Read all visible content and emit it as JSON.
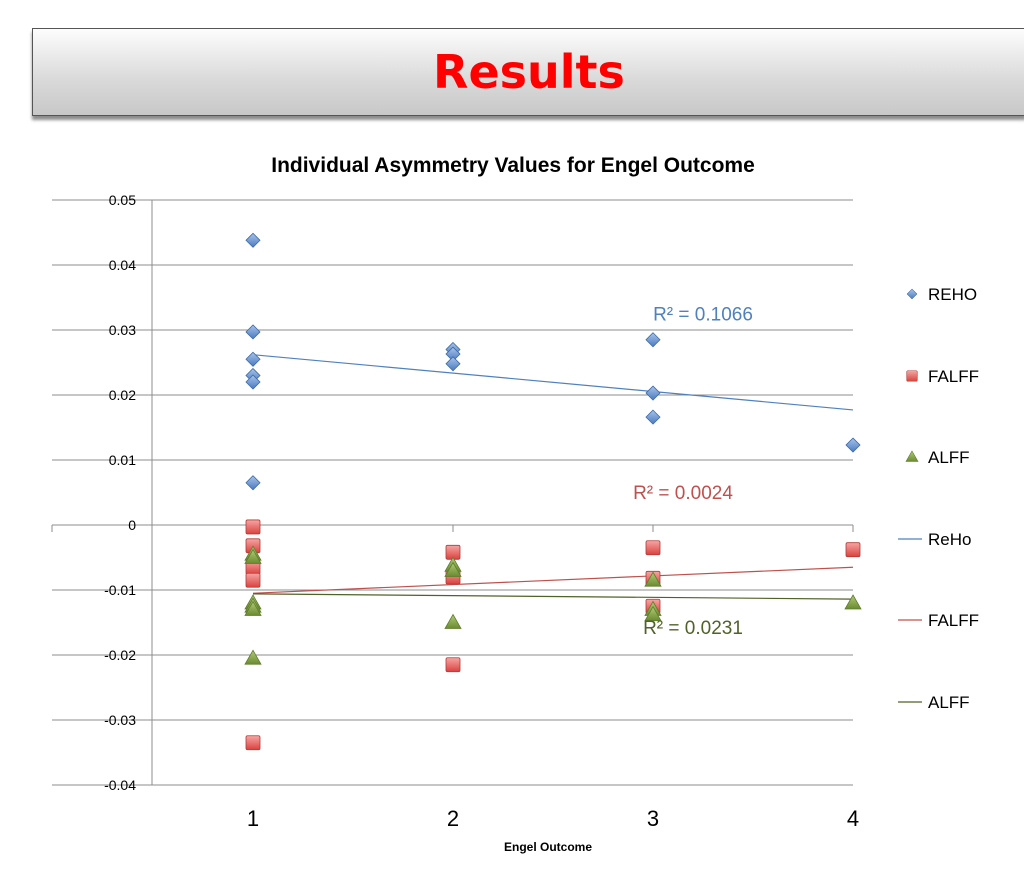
{
  "slide": {
    "title": "Results"
  },
  "chart_data": {
    "type": "scatter",
    "title": "Individual Asymmetry Values for Engel Outcome",
    "xlabel": "Engel Outcome",
    "ylabel": "",
    "xlim": [
      0.5,
      4
    ],
    "ylim": [
      -0.04,
      0.05
    ],
    "x_ticks": [
      1,
      2,
      3,
      4
    ],
    "y_ticks": [
      0.05,
      0.04,
      0.03,
      0.02,
      0.01,
      0,
      -0.01,
      -0.02,
      -0.03,
      -0.04
    ],
    "y_tick_labels": [
      "0.05",
      "0.04",
      "0.03",
      "0.02",
      "0.01",
      "0",
      "-0.01",
      "-0.02",
      "-0.03",
      "-0.04"
    ],
    "grid": true,
    "legend_position": "right",
    "series": [
      {
        "name": "REHO",
        "marker": "diamond",
        "color": "#4f81bd",
        "points": [
          [
            1,
            0.0438
          ],
          [
            1,
            0.0297
          ],
          [
            1,
            0.0255
          ],
          [
            1,
            0.023
          ],
          [
            1,
            0.022
          ],
          [
            1,
            0.0065
          ],
          [
            2,
            0.027
          ],
          [
            2,
            0.0263
          ],
          [
            2,
            0.0248
          ],
          [
            3,
            0.0285
          ],
          [
            3,
            0.0203
          ],
          [
            3,
            0.0166
          ],
          [
            4,
            0.0123
          ]
        ]
      },
      {
        "name": "FALFF",
        "marker": "square",
        "color": "#e0534f",
        "points": [
          [
            1,
            -0.0003
          ],
          [
            1,
            -0.0032
          ],
          [
            1,
            -0.0065
          ],
          [
            1,
            -0.0085
          ],
          [
            1,
            -0.0335
          ],
          [
            2,
            -0.0042
          ],
          [
            2,
            -0.008
          ],
          [
            2,
            -0.0215
          ],
          [
            3,
            -0.0035
          ],
          [
            3,
            -0.0082
          ],
          [
            3,
            -0.0125
          ],
          [
            4,
            -0.0038
          ]
        ]
      },
      {
        "name": "ALFF",
        "marker": "triangle",
        "color": "#77933c",
        "points": [
          [
            1,
            -0.0045
          ],
          [
            1,
            -0.005
          ],
          [
            1,
            -0.012
          ],
          [
            1,
            -0.0125
          ],
          [
            1,
            -0.013
          ],
          [
            1,
            -0.0205
          ],
          [
            2,
            -0.0062
          ],
          [
            2,
            -0.007
          ],
          [
            2,
            -0.015
          ],
          [
            3,
            -0.0085
          ],
          [
            3,
            -0.013
          ],
          [
            3,
            -0.0138
          ],
          [
            4,
            -0.012
          ]
        ]
      }
    ],
    "trendlines": [
      {
        "name": "ReHo",
        "color": "#4f81bd",
        "from": [
          1,
          0.0262
        ],
        "to": [
          4,
          0.0177
        ],
        "label": "R² = 0.1066",
        "label_at": [
          3.25,
          0.0315
        ]
      },
      {
        "name": "FALFF",
        "color": "#c0504d",
        "from": [
          1,
          -0.0105
        ],
        "to": [
          4,
          -0.0065
        ],
        "label": "R² = 0.0024",
        "label_at": [
          3.15,
          0.004
        ]
      },
      {
        "name": "ALFF",
        "color": "#4f6228",
        "from": [
          1,
          -0.0106
        ],
        "to": [
          4,
          -0.0114
        ],
        "label": "R² = 0.0231",
        "label_at": [
          3.2,
          -0.0168
        ]
      }
    ],
    "legend": [
      "REHO",
      "FALFF",
      "ALFF",
      "ReHo",
      "FALFF",
      "ALFF"
    ]
  }
}
